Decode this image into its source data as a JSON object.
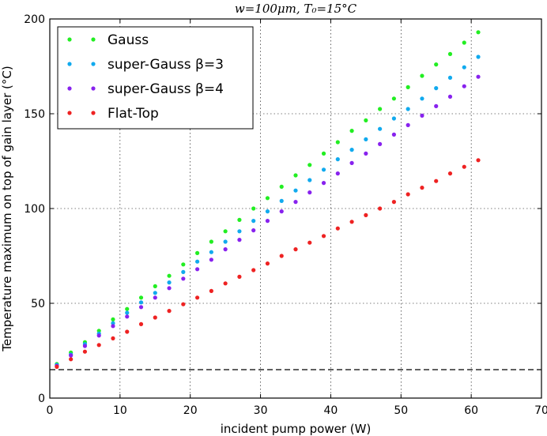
{
  "chart_data": {
    "type": "scatter",
    "title": "w=100μm, T₀=15°C",
    "xlabel": "incident pump power (W)",
    "ylabel": "Temperature maximum on top of gain layer (°C)",
    "xlim": [
      0,
      70
    ],
    "ylim": [
      0,
      200
    ],
    "xticks": [
      0,
      10,
      20,
      30,
      40,
      50,
      60,
      70
    ],
    "yticks": [
      0,
      50,
      100,
      150,
      200
    ],
    "grid": true,
    "legend_position": "top-left",
    "reference_line": {
      "y": 15,
      "style": "dashed",
      "color": "#000000"
    },
    "x": [
      1,
      3,
      5,
      7,
      9,
      11,
      13,
      15,
      17,
      19,
      21,
      23,
      25,
      27,
      29,
      31,
      33,
      35,
      37,
      39,
      41,
      43,
      45,
      47,
      49,
      51,
      53,
      55,
      57,
      59,
      61
    ],
    "series": [
      {
        "name": "Gauss",
        "color": "#22ee22",
        "values": [
          18,
          24,
          29.5,
          35.5,
          41.5,
          47,
          53,
          59,
          64.5,
          70.5,
          76.5,
          82.5,
          88,
          94,
          100,
          105.5,
          111.5,
          117.5,
          123,
          129,
          135,
          141,
          146.5,
          152.5,
          158,
          164,
          170,
          176,
          181.5,
          187.5,
          193
        ]
      },
      {
        "name": "super-Gauss β=3",
        "color": "#11aaee",
        "values": [
          17.5,
          23,
          28.5,
          34,
          39.5,
          45,
          50.5,
          55.5,
          61,
          66.5,
          72,
          77,
          82.5,
          88,
          93.5,
          98.5,
          104,
          109.5,
          115,
          120.5,
          126,
          131,
          136.5,
          142,
          147.5,
          152.5,
          158,
          163.5,
          169,
          174.5,
          180
        ]
      },
      {
        "name": "super-Gauss β=4",
        "color": "#8822ee",
        "values": [
          17,
          22.5,
          27.5,
          33,
          38,
          43,
          48,
          53,
          58,
          63,
          68,
          73,
          78.5,
          83.5,
          88.5,
          93.5,
          98.5,
          103.5,
          108.5,
          113.5,
          118.5,
          124,
          129,
          134,
          139,
          144,
          149,
          154,
          159,
          164.5,
          169.5
        ]
      },
      {
        "name": "Flat-Top",
        "color": "#ee2222",
        "values": [
          16.5,
          20.5,
          24.5,
          28,
          31.5,
          35,
          39,
          42.5,
          46,
          49.5,
          53,
          56.5,
          60.5,
          64,
          67.5,
          71,
          75,
          78.5,
          82,
          85.5,
          89.5,
          93,
          96.5,
          100,
          103.5,
          107.5,
          111,
          114.5,
          118.5,
          122,
          125.5
        ]
      }
    ]
  }
}
